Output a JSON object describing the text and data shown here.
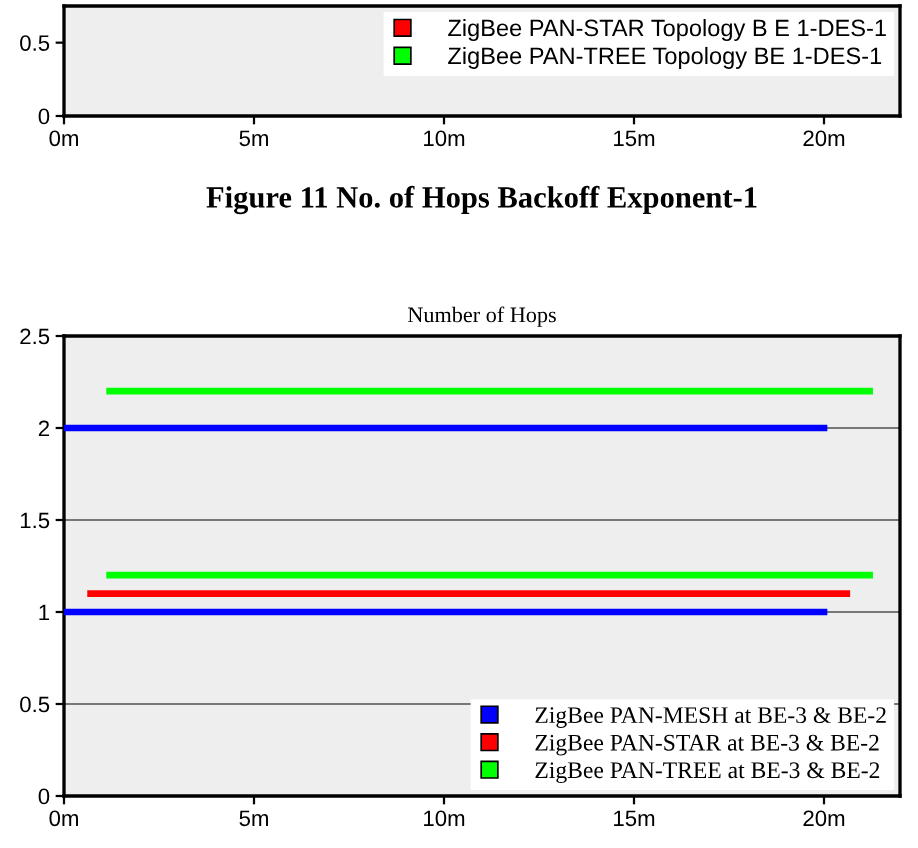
{
  "chart_data": [
    {
      "type": "line",
      "categories": [
        "0m",
        "5m",
        "10m",
        "15m",
        "20m"
      ],
      "ylim": [
        0,
        0.75
      ],
      "yticks": [
        0,
        0.5
      ],
      "legend": "top right",
      "series": [
        {
          "name": "ZigBee PAN-STAR Topology B E 1-DES-1",
          "color": "#ff0000",
          "values": [
            null,
            null,
            null,
            null,
            null
          ]
        },
        {
          "name": "ZigBee PAN-TREE Topology BE 1-DES-1",
          "color": "#00ff00",
          "values": [
            null,
            null,
            null,
            null,
            null
          ]
        }
      ],
      "annotations": [
        "Figure 11 No. of Hops Backoff Exponent-1"
      ]
    },
    {
      "type": "line",
      "title": "Number of Hops",
      "xlim": [
        0,
        22
      ],
      "xticks": [
        {
          "value": 0,
          "label": "0m"
        },
        {
          "value": 5,
          "label": "5m"
        },
        {
          "value": 10,
          "label": "10m"
        },
        {
          "value": 15,
          "label": "15m"
        },
        {
          "value": 20,
          "label": "20m"
        }
      ],
      "ylim": [
        0,
        2.5
      ],
      "yticks": [
        0,
        0.5,
        1,
        1.5,
        2,
        2.5
      ],
      "grid": "y",
      "legend": "bottom right",
      "series": [
        {
          "name": "ZigBee PAN-MESH at BE-3 & BE-2",
          "color": "#0000ff",
          "x": [
            0,
            20
          ],
          "values": [
            1,
            1
          ]
        },
        {
          "color": "#0000ff",
          "x": [
            0,
            20
          ],
          "values": [
            2,
            2
          ]
        },
        {
          "name": "ZigBee PAN-STAR at BE-3 & BE-2",
          "color": "#ff0000",
          "x": [
            0.7,
            20.6
          ],
          "values": [
            1.1,
            1.1
          ]
        },
        {
          "name": "ZigBee PAN-TREE at BE-3 & BE-2",
          "color": "#00ff00",
          "x": [
            1.2,
            21.2
          ],
          "values": [
            1.2,
            1.2
          ]
        },
        {
          "color": "#00ff00",
          "x": [
            1.2,
            21.2
          ],
          "values": [
            2.2,
            2.2
          ]
        }
      ]
    }
  ]
}
